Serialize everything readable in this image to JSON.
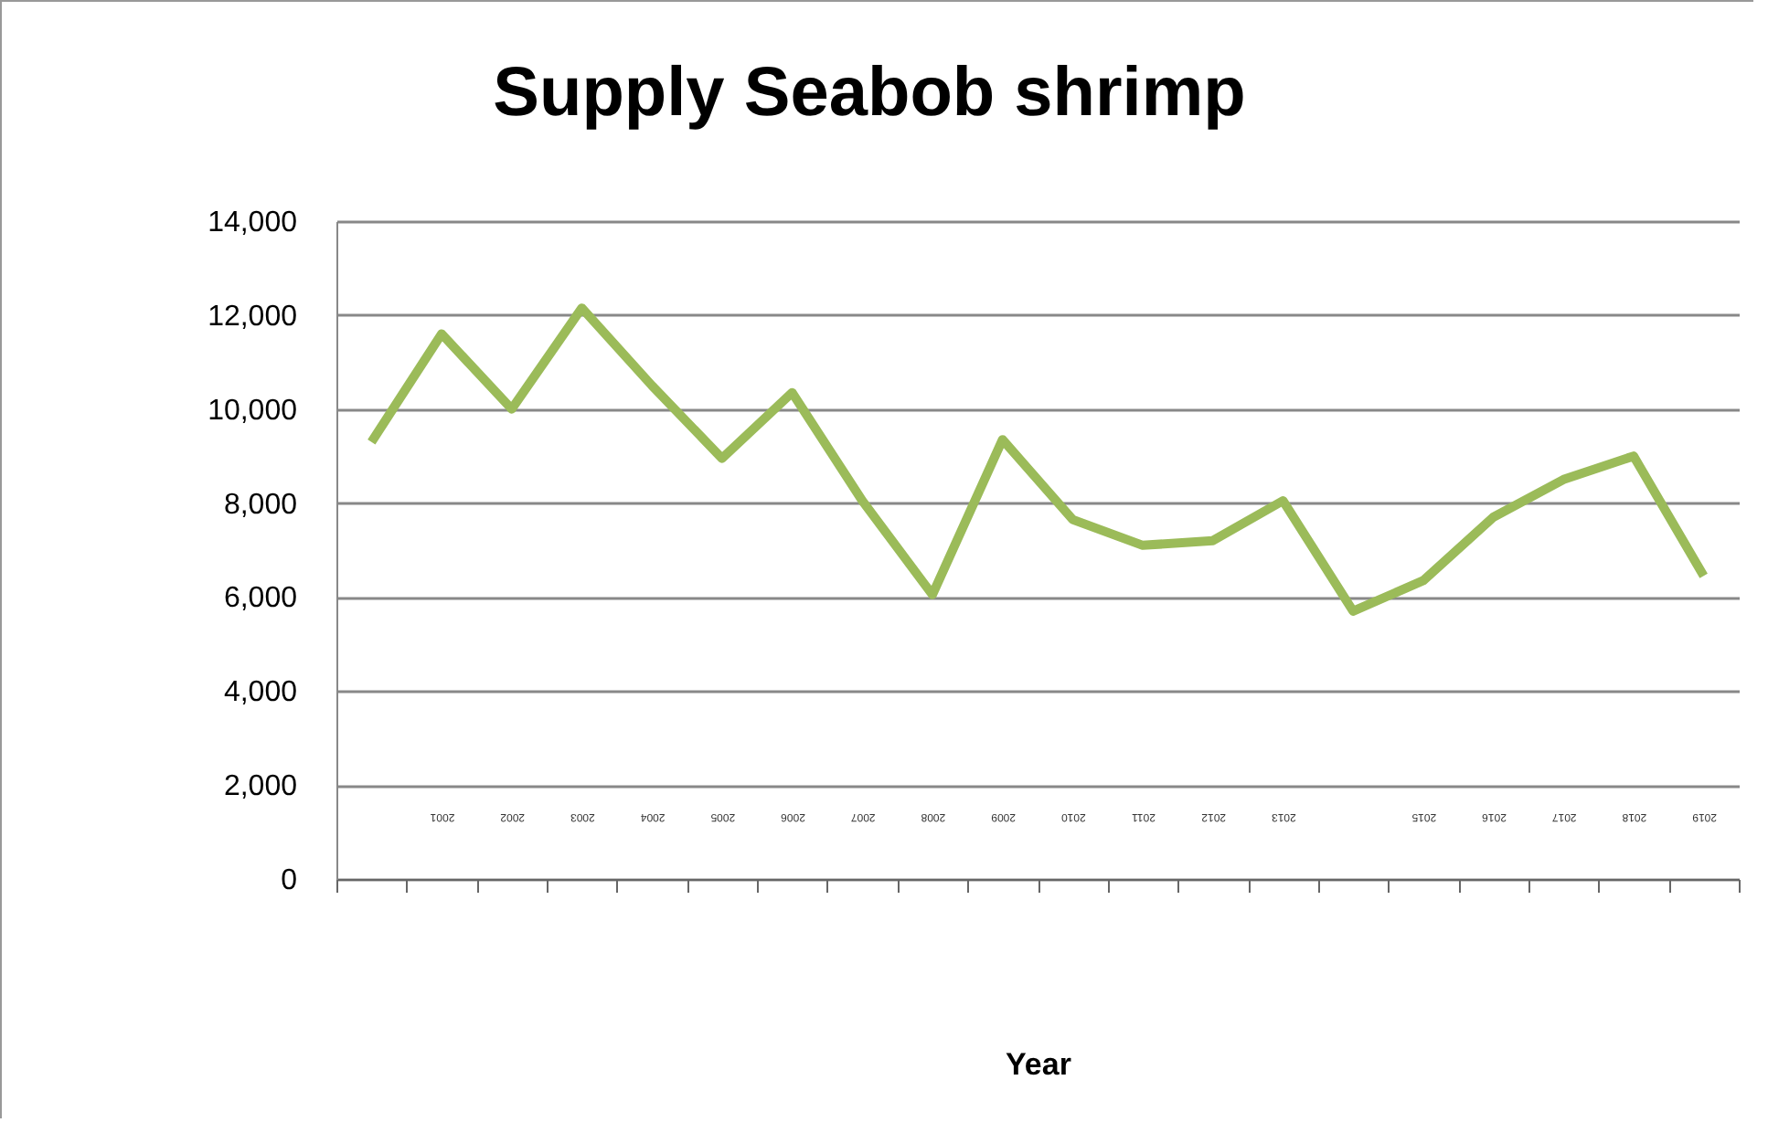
{
  "chart_data": {
    "type": "line",
    "title": "Supply Seabob shrimp",
    "xlabel": "Year",
    "categories": [
      null,
      "2001",
      "2002",
      "2003",
      "2004",
      "2005",
      "2006",
      "2007",
      "2008",
      "2009",
      "2010",
      "2011",
      "2012",
      "2013",
      null,
      "2015",
      "2016",
      "2017",
      "2018",
      "2019"
    ],
    "series": [
      {
        "color": "#9bbb59",
        "values": [
          9300,
          11600,
          10000,
          12150,
          10500,
          8950,
          10350,
          8050,
          6050,
          9350,
          7650,
          7100,
          7200,
          8050,
          5700,
          6350,
          7700,
          8500,
          9000,
          6450
        ]
      }
    ],
    "ylim": [
      0,
      14000
    ],
    "yticks": [
      0,
      {
        "value": 2000,
        "label": "2,000"
      },
      {
        "value": 4000,
        "label": "4,000"
      },
      {
        "value": 6000,
        "label": "6,000"
      },
      {
        "value": 8000,
        "label": "8,000"
      },
      {
        "value": 10000,
        "label": "10,000"
      },
      {
        "value": 12000,
        "label": "12,000"
      },
      {
        "value": 14000,
        "label": "14,000"
      }
    ],
    "grid": "y",
    "marker": "none",
    "line_style": "solid"
  }
}
